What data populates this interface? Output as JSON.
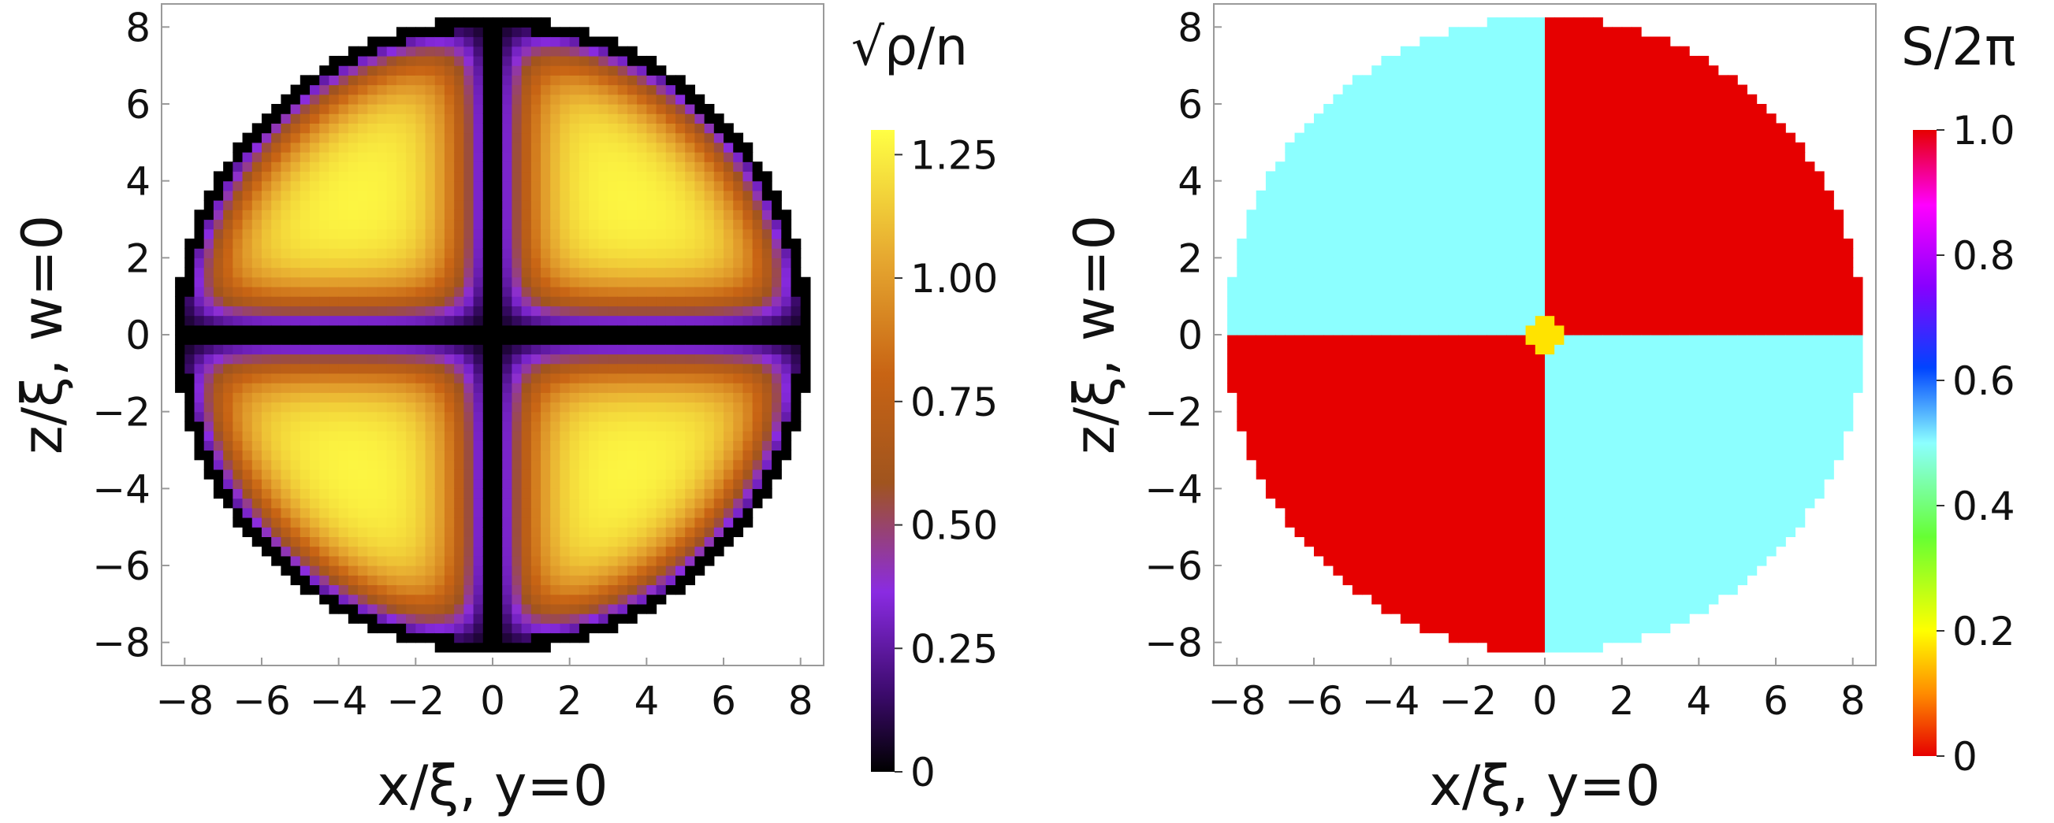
{
  "chart_data": [
    {
      "type": "heatmap",
      "panel": "left",
      "xlabel": "x/ξ, y=0",
      "ylabel": "z/ξ, w=0",
      "xlim": [
        -8.6,
        8.6
      ],
      "ylim": [
        -8.6,
        8.6
      ],
      "x_ticks": [
        "−8",
        "−6",
        "−4",
        "−2",
        "0",
        "2",
        "4",
        "6",
        "8"
      ],
      "y_ticks": [
        "−8",
        "−6",
        "−4",
        "−2",
        "0",
        "2",
        "4",
        "6",
        "8"
      ],
      "x_tick_values": [
        -8,
        -6,
        -4,
        -2,
        0,
        2,
        4,
        6,
        8
      ],
      "y_tick_values": [
        -8,
        -6,
        -4,
        -2,
        0,
        2,
        4,
        6,
        8
      ],
      "domain_radius": 8.25,
      "grid_step": 0.25,
      "description_of_field": "density zero on x=0 and z=0 planes and on boundary, peaks ~1.3 near (±4, ±4)",
      "peak_value": 1.3,
      "colorbar": {
        "title": "√ρ/n",
        "range": [
          0,
          1.3
        ],
        "tick_values": [
          0,
          0.25,
          0.5,
          0.75,
          1.0,
          1.25
        ],
        "tick_labels": [
          "0",
          "0.25",
          "0.50",
          "0.75",
          "1.00",
          "1.25"
        ],
        "colors": [
          "#000000",
          "#3b0a6b",
          "#8a2be2",
          "#a0541e",
          "#c86414",
          "#e6a830",
          "#ffff44"
        ]
      }
    },
    {
      "type": "heatmap",
      "panel": "right",
      "xlabel": "x/ξ, y=0",
      "ylabel": "z/ξ, w=0",
      "xlim": [
        -8.6,
        8.6
      ],
      "ylim": [
        -8.6,
        8.6
      ],
      "x_ticks": [
        "−8",
        "−6",
        "−4",
        "−2",
        "0",
        "2",
        "4",
        "6",
        "8"
      ],
      "y_ticks": [
        "−8",
        "−6",
        "−4",
        "−2",
        "0",
        "2",
        "4",
        "6",
        "8"
      ],
      "x_tick_values": [
        -8,
        -6,
        -4,
        -2,
        0,
        2,
        4,
        6,
        8
      ],
      "y_tick_values": [
        -8,
        -6,
        -4,
        -2,
        0,
        2,
        4,
        6,
        8
      ],
      "domain_radius": 8.25,
      "grid_step": 0.25,
      "quadrant_values": {
        "x_pos_z_pos": 0.0,
        "x_neg_z_pos": 0.5,
        "x_neg_z_neg": 0.0,
        "x_pos_z_neg": 0.5
      },
      "colorbar": {
        "title": "S/2π",
        "range": [
          0,
          1
        ],
        "tick_values": [
          0,
          0.2,
          0.4,
          0.6,
          0.8,
          1.0
        ],
        "tick_labels": [
          "0",
          "0.2",
          "0.4",
          "0.6",
          "0.8",
          "1.0"
        ],
        "colors": [
          "#e60000",
          "#ff8c00",
          "#ffff00",
          "#66ff33",
          "#8cffff",
          "#0044ff",
          "#8800ff",
          "#ff00ff",
          "#e60000"
        ]
      }
    }
  ]
}
